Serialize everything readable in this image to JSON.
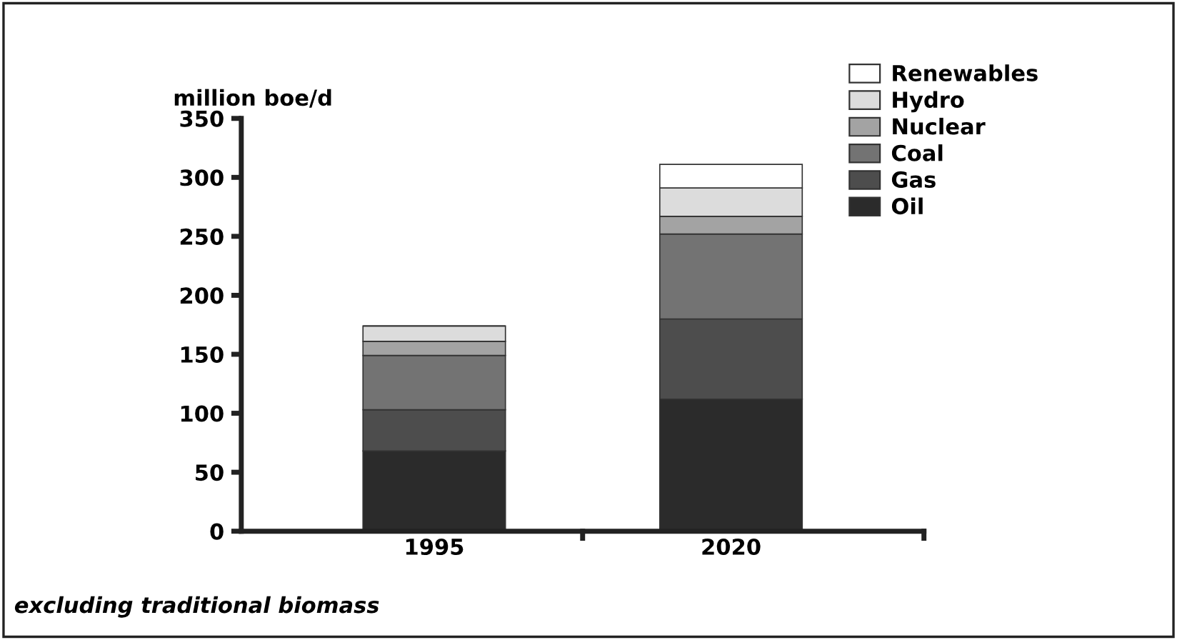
{
  "chart_data": {
    "type": "bar",
    "stacked": true,
    "ylabel": "million boe/d",
    "categories": [
      "1995",
      "2020"
    ],
    "series": [
      {
        "name": "Oil",
        "color": "#2b2b2b",
        "values": [
          68,
          112
        ]
      },
      {
        "name": "Gas",
        "color": "#4d4d4d",
        "values": [
          35,
          68
        ]
      },
      {
        "name": "Coal",
        "color": "#737373",
        "values": [
          46,
          72
        ]
      },
      {
        "name": "Nuclear",
        "color": "#a3a3a3",
        "values": [
          12,
          15
        ]
      },
      {
        "name": "Hydro",
        "color": "#dcdcdc",
        "values": [
          13,
          24
        ]
      },
      {
        "name": "Renewables",
        "color": "#ffffff",
        "values": [
          null,
          20
        ]
      }
    ],
    "ylim": [
      0,
      350
    ],
    "yticks": [
      0,
      50,
      100,
      150,
      200,
      250,
      300,
      350
    ],
    "grid": false,
    "legend": "top right",
    "annotations": [
      "excluding traditional biomass"
    ]
  }
}
